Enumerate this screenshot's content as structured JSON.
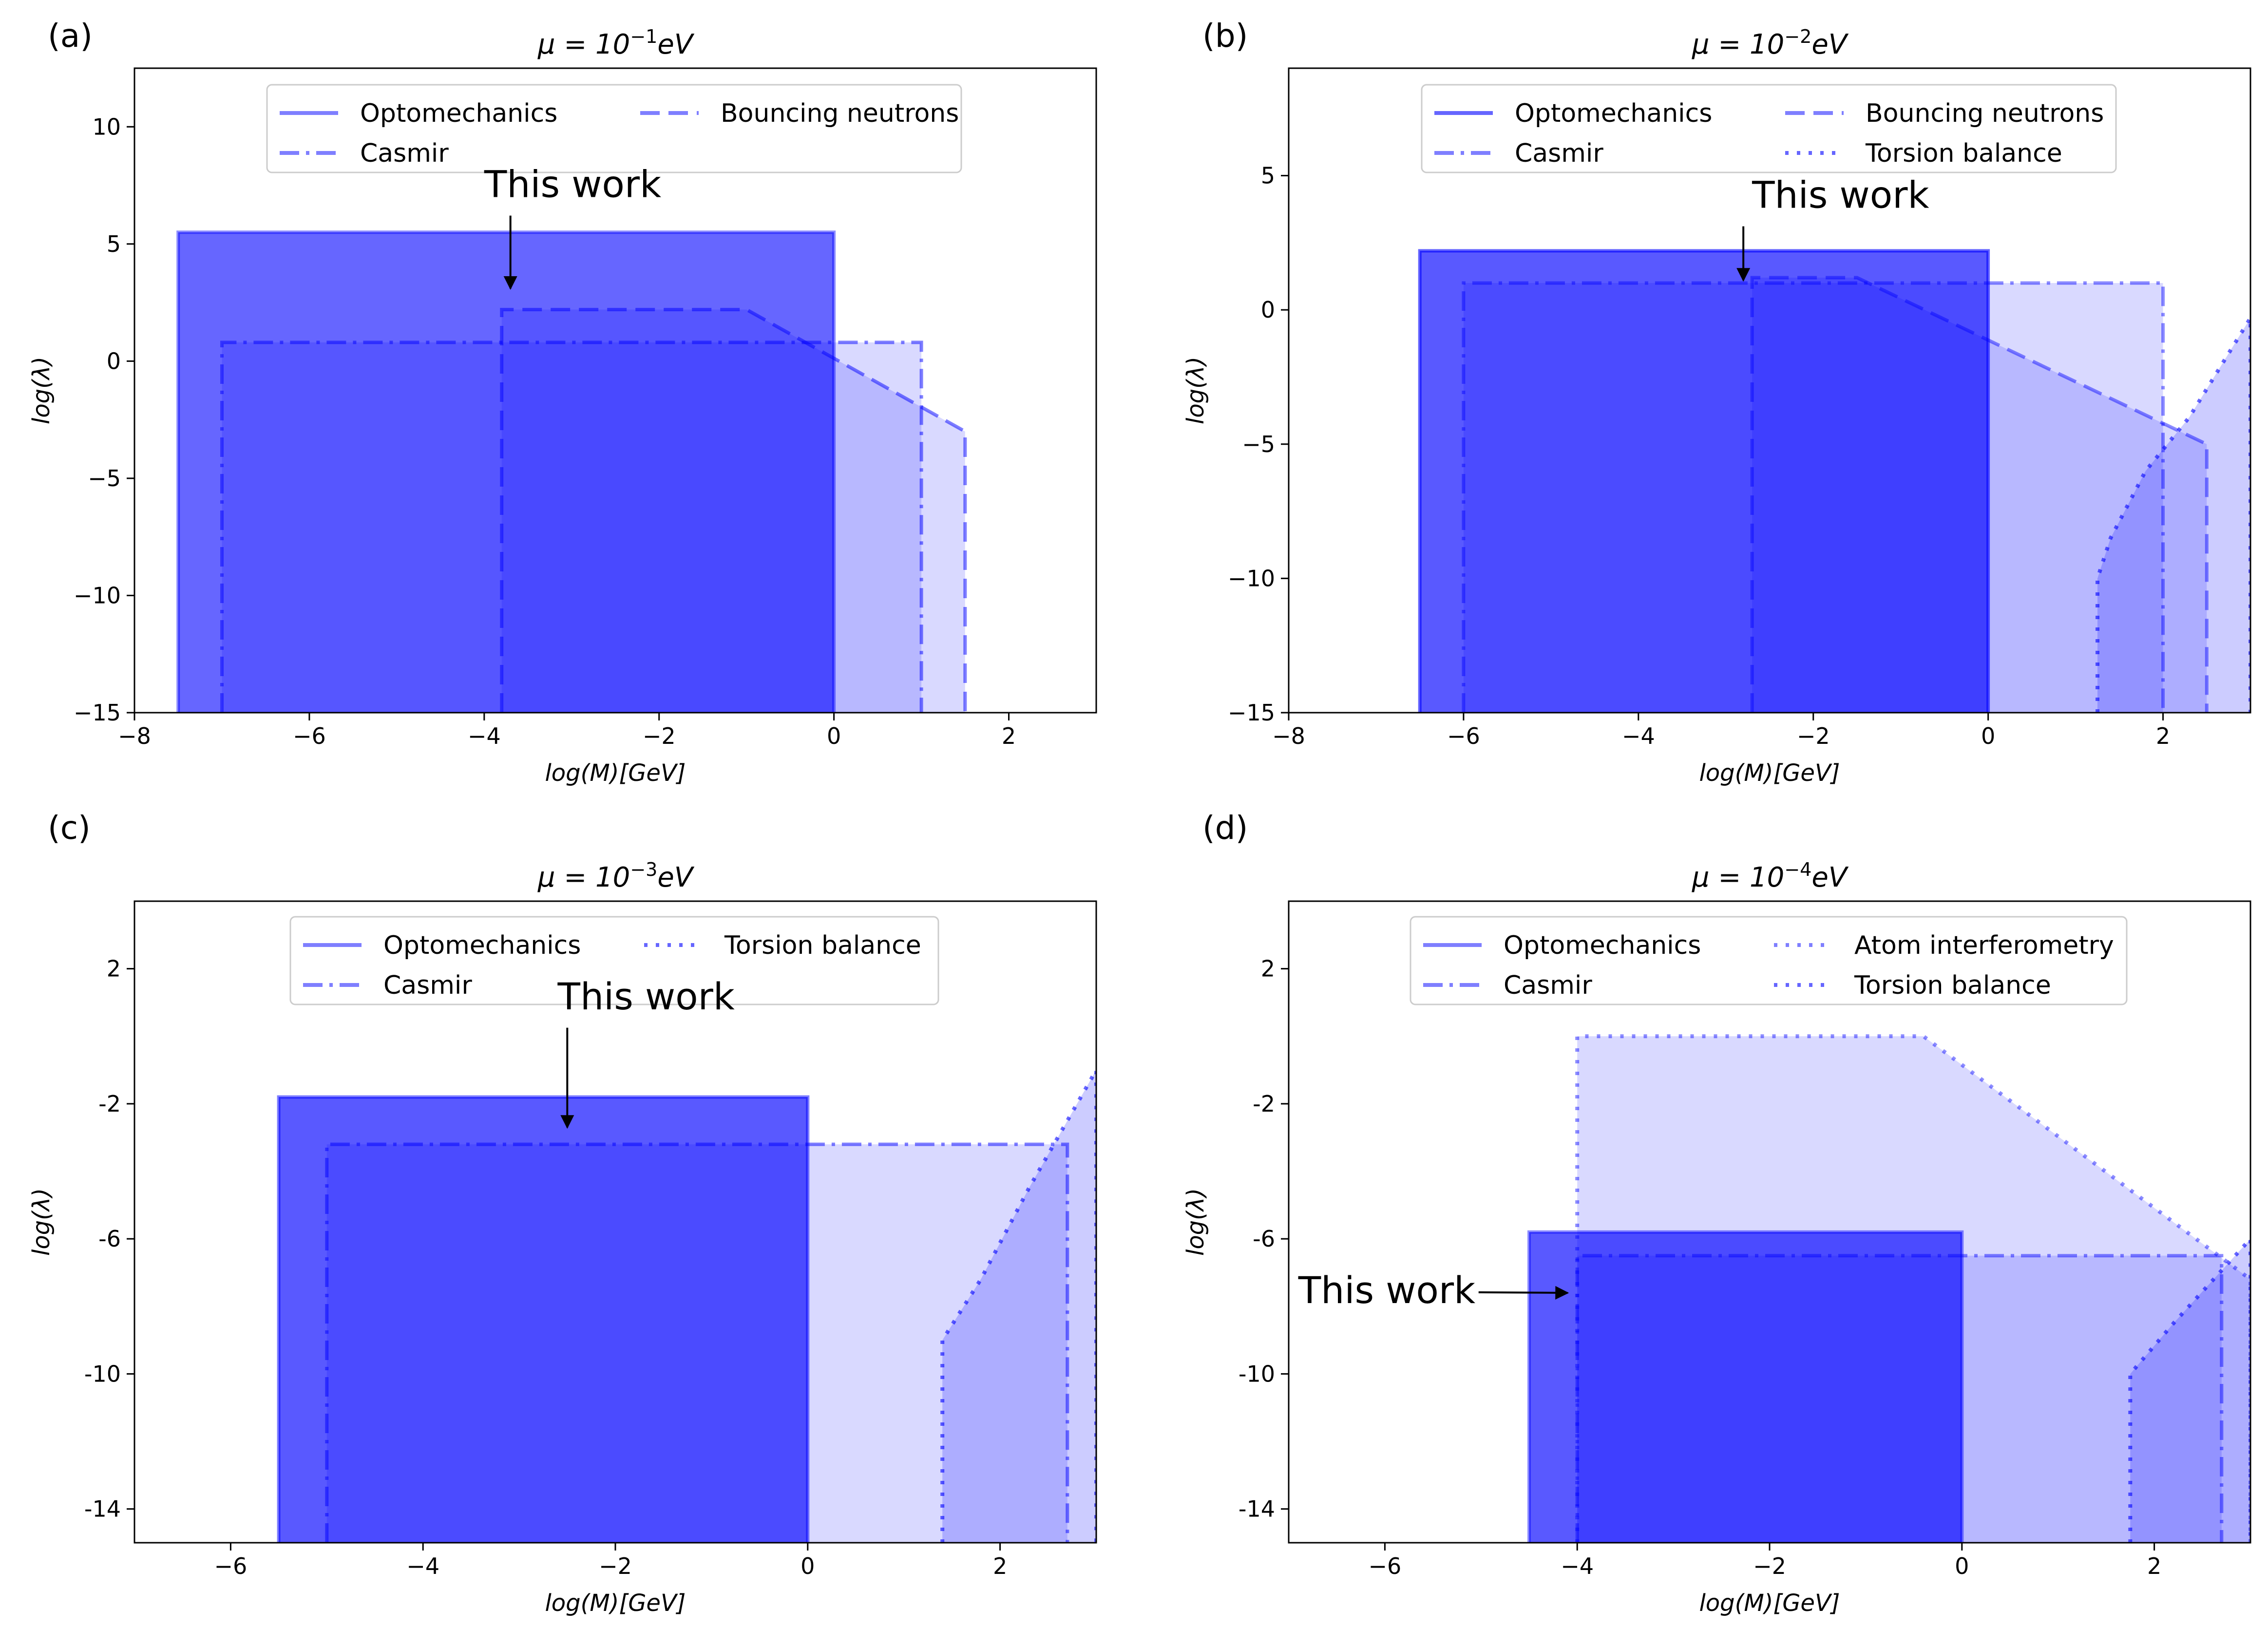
{
  "figure": {
    "colors": {
      "base": "#0000ff",
      "frame": "#000000",
      "background": "#ffffff"
    }
  },
  "chart_data": [
    {
      "type": "area",
      "panel_label": "(a)",
      "title_prefix": "μ = 10",
      "title_exponent": "−1",
      "title_unit": "eV",
      "xlabel": "log(M)[GeV]",
      "ylabel": "log(λ)",
      "xlim": [
        -8,
        3
      ],
      "ylim": [
        -15,
        12.5
      ],
      "xticks": [
        -8,
        -6,
        -4,
        -2,
        0,
        2
      ],
      "xtick_labels": [
        "−8",
        "−6",
        "−4",
        "−2",
        "0",
        "2"
      ],
      "yticks": [
        -15,
        -10,
        -5,
        0,
        5,
        10
      ],
      "ytick_labels": [
        "−15",
        "−10",
        "−5",
        "0",
        "5",
        "10"
      ],
      "legend_columns": [
        [
          "Optomechanics",
          "Casmir"
        ],
        [
          "Bouncing neutrons"
        ]
      ],
      "series": [
        {
          "name": "Optomechanics",
          "style": "solid",
          "fill_alpha": 0.6,
          "line_alpha": 0.45,
          "points": [
            [
              -7.5,
              -15
            ],
            [
              -7.5,
              5.5
            ],
            [
              0,
              5.5
            ],
            [
              0,
              -15
            ]
          ]
        },
        {
          "name": "Casmir",
          "style": "dashdot",
          "fill_alpha": 0.15,
          "line_alpha": 0.5,
          "points": [
            [
              -7,
              -15
            ],
            [
              -7,
              0.8
            ],
            [
              1,
              0.8
            ],
            [
              1,
              -15
            ]
          ]
        },
        {
          "name": "Bouncing neutrons",
          "style": "dashed",
          "fill_alpha": 0.15,
          "line_alpha": 0.5,
          "points": [
            [
              -3.8,
              -15
            ],
            [
              -3.8,
              2.2
            ],
            [
              -1,
              2.2
            ],
            [
              1.5,
              -3
            ],
            [
              1.5,
              -15
            ]
          ]
        }
      ],
      "annotation": {
        "text": "This work",
        "text_at": [
          -4,
          7
        ],
        "arrow_to": [
          -3.7,
          3.1
        ]
      }
    },
    {
      "type": "area",
      "panel_label": "(b)",
      "title_prefix": "μ = 10",
      "title_exponent": "−2",
      "title_unit": "eV",
      "xlabel": "log(M)[GeV]",
      "ylabel": "log(λ)",
      "xlim": [
        -8,
        3
      ],
      "ylim": [
        -15,
        9
      ],
      "xticks": [
        -8,
        -6,
        -4,
        -2,
        0,
        2
      ],
      "xtick_labels": [
        "−8",
        "−6",
        "−4",
        "−2",
        "0",
        "2"
      ],
      "yticks": [
        -15,
        -10,
        -5,
        0,
        5
      ],
      "ytick_labels": [
        "−15",
        "−10",
        "−5",
        "0",
        "5"
      ],
      "legend_columns": [
        [
          "Optomechanics",
          "Casmir"
        ],
        [
          "Bouncing neutrons",
          "Torsion balance"
        ]
      ],
      "series": [
        {
          "name": "Optomechanics",
          "style": "solid",
          "fill_alpha": 0.65,
          "line_alpha": 0.6,
          "points": [
            [
              -6.5,
              -15
            ],
            [
              -6.5,
              2.2
            ],
            [
              0,
              2.2
            ],
            [
              0,
              -15
            ]
          ]
        },
        {
          "name": "Casmir",
          "style": "dashdot",
          "fill_alpha": 0.15,
          "line_alpha": 0.45,
          "points": [
            [
              -6,
              -15
            ],
            [
              -6,
              1
            ],
            [
              2,
              1
            ],
            [
              2,
              -15
            ]
          ]
        },
        {
          "name": "Bouncing neutrons",
          "style": "dashed",
          "fill_alpha": 0.15,
          "line_alpha": 0.45,
          "points": [
            [
              -2.7,
              -15
            ],
            [
              -2.7,
              1.2
            ],
            [
              -1.5,
              1.2
            ],
            [
              2.5,
              -5
            ],
            [
              2.5,
              -15
            ]
          ]
        },
        {
          "name": "Torsion balance",
          "style": "dotted",
          "fill_alpha": 0.2,
          "line_alpha": 0.6,
          "points": [
            [
              1.25,
              -15
            ],
            [
              1.25,
              -10
            ],
            [
              1.4,
              -8.5
            ],
            [
              1.8,
              -6
            ],
            [
              2.3,
              -4
            ],
            [
              3,
              -0.3
            ],
            [
              3,
              -15
            ]
          ]
        }
      ],
      "annotation": {
        "text": "This work",
        "text_at": [
          -2.7,
          3.8
        ],
        "arrow_to": [
          -2.8,
          1.1
        ]
      }
    },
    {
      "type": "area",
      "panel_label": "(c)",
      "title_prefix": "μ = 10",
      "title_exponent": "−3",
      "title_unit": "eV",
      "xlabel": "log(M)[GeV]",
      "ylabel": "log(λ)",
      "xlim": [
        -7,
        3
      ],
      "ylim": [
        -15,
        4
      ],
      "xticks": [
        -6,
        -4,
        -2,
        0,
        2
      ],
      "xtick_labels": [
        "−6",
        "−4",
        "−2",
        "0",
        "2"
      ],
      "yticks": [
        -14,
        -10,
        -6,
        -2,
        2
      ],
      "ytick_labels": [
        "-14",
        "-10",
        "-6",
        "-2",
        "2"
      ],
      "legend_columns": [
        [
          "Optomechanics",
          "Casmir"
        ],
        [
          "Torsion balance"
        ]
      ],
      "series": [
        {
          "name": "Optomechanics",
          "style": "solid",
          "fill_alpha": 0.65,
          "line_alpha": 0.5,
          "points": [
            [
              -5.5,
              -15
            ],
            [
              -5.5,
              -1.8
            ],
            [
              0,
              -1.8
            ],
            [
              0,
              -15
            ]
          ]
        },
        {
          "name": "Casmir",
          "style": "dashdot",
          "fill_alpha": 0.15,
          "line_alpha": 0.5,
          "points": [
            [
              -5,
              -15
            ],
            [
              -5,
              -3.2
            ],
            [
              2.7,
              -3.2
            ],
            [
              2.7,
              -15
            ]
          ]
        },
        {
          "name": "Torsion balance",
          "style": "dotted",
          "fill_alpha": 0.2,
          "line_alpha": 0.6,
          "points": [
            [
              1.4,
              -15
            ],
            [
              1.4,
              -9
            ],
            [
              1.8,
              -7.2
            ],
            [
              2.3,
              -4.5
            ],
            [
              3,
              -1
            ],
            [
              3,
              -15
            ]
          ]
        }
      ],
      "annotation": {
        "text": "This work",
        "text_at": [
          -2.6,
          0.8
        ],
        "arrow_to": [
          -2.5,
          -2.7
        ]
      }
    },
    {
      "type": "area",
      "panel_label": "(d)",
      "title_prefix": "μ = 10",
      "title_exponent": "−4",
      "title_unit": "eV",
      "xlabel": "log(M)[GeV]",
      "ylabel": "log(λ)",
      "xlim": [
        -7,
        3
      ],
      "ylim": [
        -15,
        4
      ],
      "xticks": [
        -6,
        -4,
        -2,
        0,
        2
      ],
      "xtick_labels": [
        "−6",
        "−4",
        "−2",
        "0",
        "2"
      ],
      "yticks": [
        -14,
        -10,
        -6,
        -2,
        2
      ],
      "ytick_labels": [
        "-14",
        "-10",
        "-6",
        "-2",
        "2"
      ],
      "legend_columns": [
        [
          "Optomechanics",
          "Casmir"
        ],
        [
          "Atom interferometry",
          "Torsion balance"
        ]
      ],
      "series": [
        {
          "name": "Optomechanics",
          "style": "solid",
          "fill_alpha": 0.65,
          "line_alpha": 0.45,
          "points": [
            [
              -4.5,
              -15
            ],
            [
              -4.5,
              -5.8
            ],
            [
              0,
              -5.8
            ],
            [
              0,
              -15
            ]
          ]
        },
        {
          "name": "Casmir",
          "style": "dashdot",
          "fill_alpha": 0.15,
          "line_alpha": 0.45,
          "points": [
            [
              -4,
              -15
            ],
            [
              -4,
              -6.5
            ],
            [
              2.7,
              -6.5
            ],
            [
              2.7,
              -15
            ]
          ]
        },
        {
          "name": "Atom interferometry",
          "style": "dotted",
          "fill_alpha": 0.15,
          "line_alpha": 0.45,
          "points": [
            [
              -4,
              -15
            ],
            [
              -4,
              0
            ],
            [
              -0.4,
              0
            ],
            [
              3,
              -7.2
            ],
            [
              3,
              -15
            ]
          ]
        },
        {
          "name": "Torsion balance",
          "style": "dotted",
          "fill_alpha": 0.2,
          "line_alpha": 0.6,
          "points": [
            [
              1.75,
              -15
            ],
            [
              1.75,
              -10
            ],
            [
              2.2,
              -8.5
            ],
            [
              3,
              -6
            ],
            [
              3,
              -15
            ]
          ]
        }
      ],
      "annotation": {
        "text": "This work",
        "text_at": [
          -6.9,
          -7.9
        ],
        "arrow_to": [
          -4.1,
          -7.6
        ]
      }
    }
  ]
}
